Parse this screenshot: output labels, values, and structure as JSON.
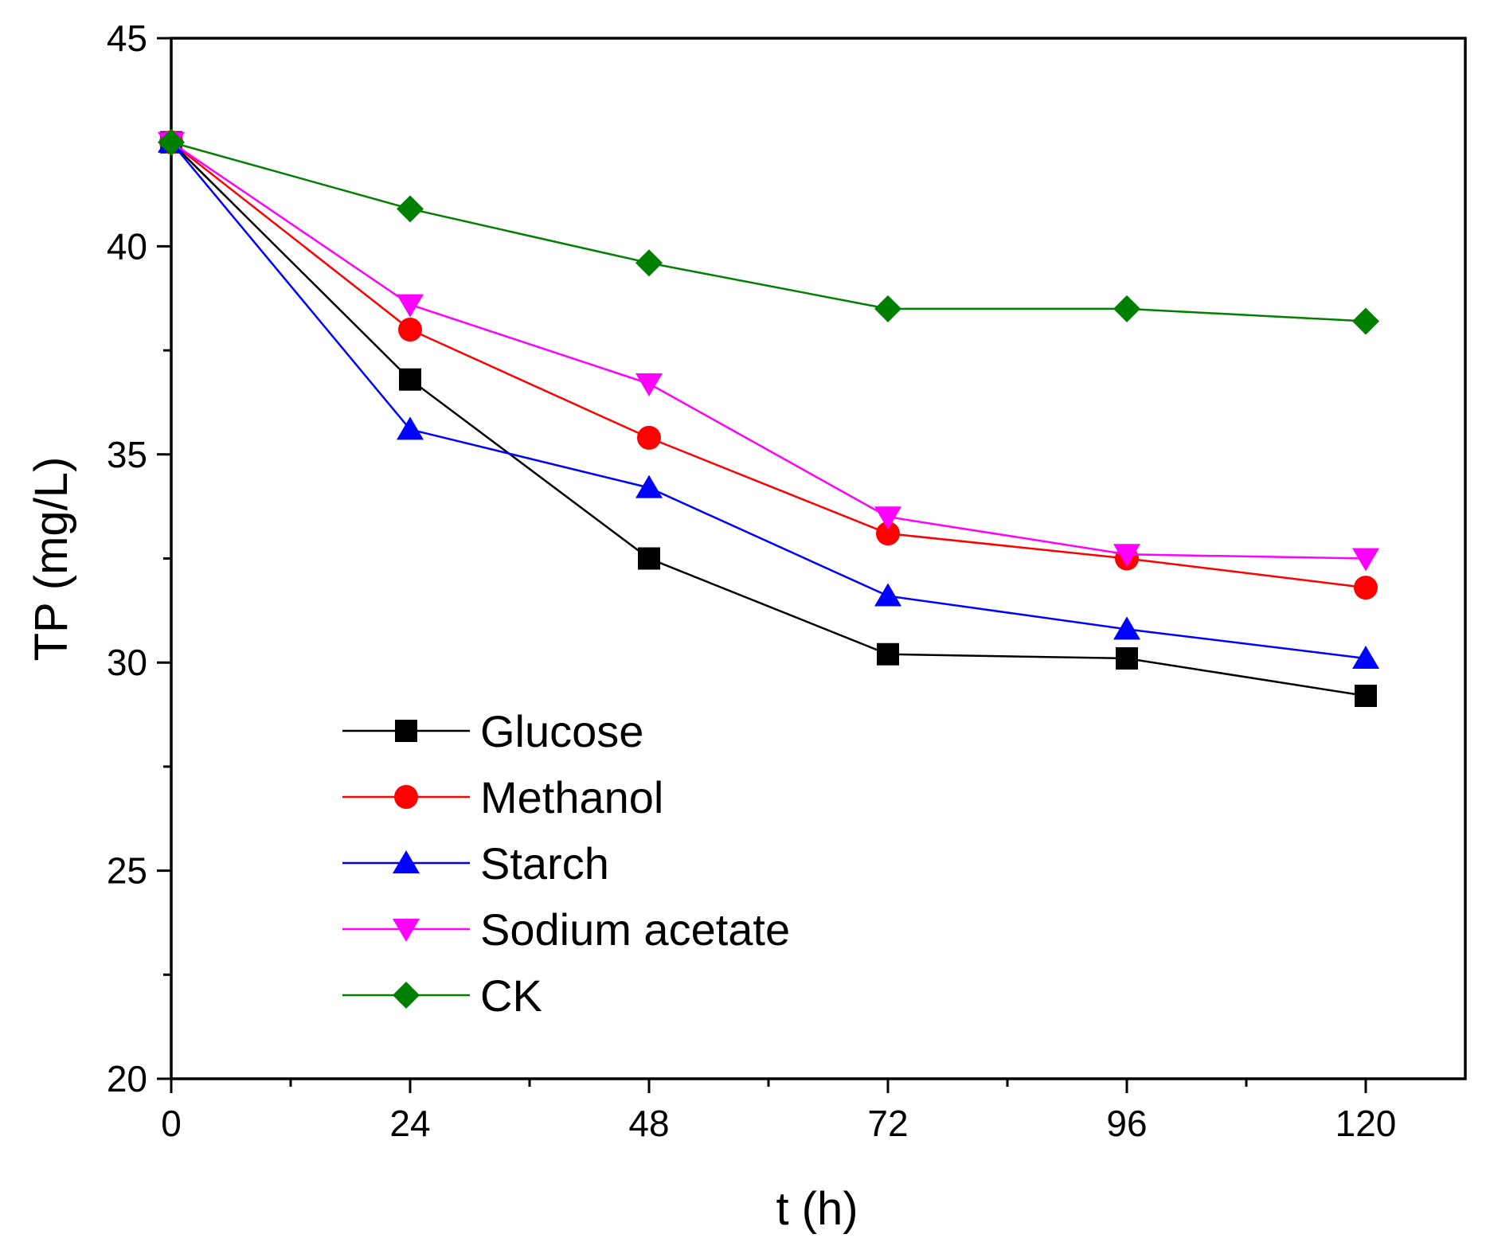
{
  "chart_data": {
    "type": "line",
    "title": "",
    "xlabel": "t (h)",
    "ylabel": "TP (mg/L)",
    "xlim": [
      0,
      130
    ],
    "ylim": [
      20,
      45
    ],
    "x_ticks": [
      0,
      24,
      48,
      72,
      96,
      120
    ],
    "x_tick_labels": [
      "0",
      "24",
      "48",
      "72",
      "96",
      "120"
    ],
    "y_ticks": [
      20,
      25,
      30,
      35,
      40,
      45
    ],
    "y_tick_labels": [
      "20",
      "25",
      "30",
      "35",
      "40",
      "45"
    ],
    "grid": false,
    "legend_position": "bottom-left",
    "x": [
      0,
      24,
      48,
      72,
      96,
      120
    ],
    "series": [
      {
        "name": "Glucose",
        "marker": "square",
        "color": "#000000",
        "values": [
          42.5,
          36.8,
          32.5,
          30.2,
          30.1,
          29.2
        ]
      },
      {
        "name": "Methanol",
        "marker": "circle",
        "color": "#ff0000",
        "values": [
          42.5,
          38.0,
          35.4,
          33.1,
          32.5,
          31.8
        ]
      },
      {
        "name": "Starch",
        "marker": "triangle-up",
        "color": "#0000ff",
        "values": [
          42.5,
          35.6,
          34.2,
          31.6,
          30.8,
          30.1
        ]
      },
      {
        "name": "Sodium acetate",
        "marker": "triangle-down",
        "color": "#ff00ff",
        "values": [
          42.5,
          38.6,
          36.7,
          33.5,
          32.6,
          32.5
        ]
      },
      {
        "name": "CK",
        "marker": "diamond",
        "color": "#008000",
        "values": [
          42.5,
          40.9,
          39.6,
          38.5,
          38.5,
          38.2
        ]
      }
    ]
  }
}
